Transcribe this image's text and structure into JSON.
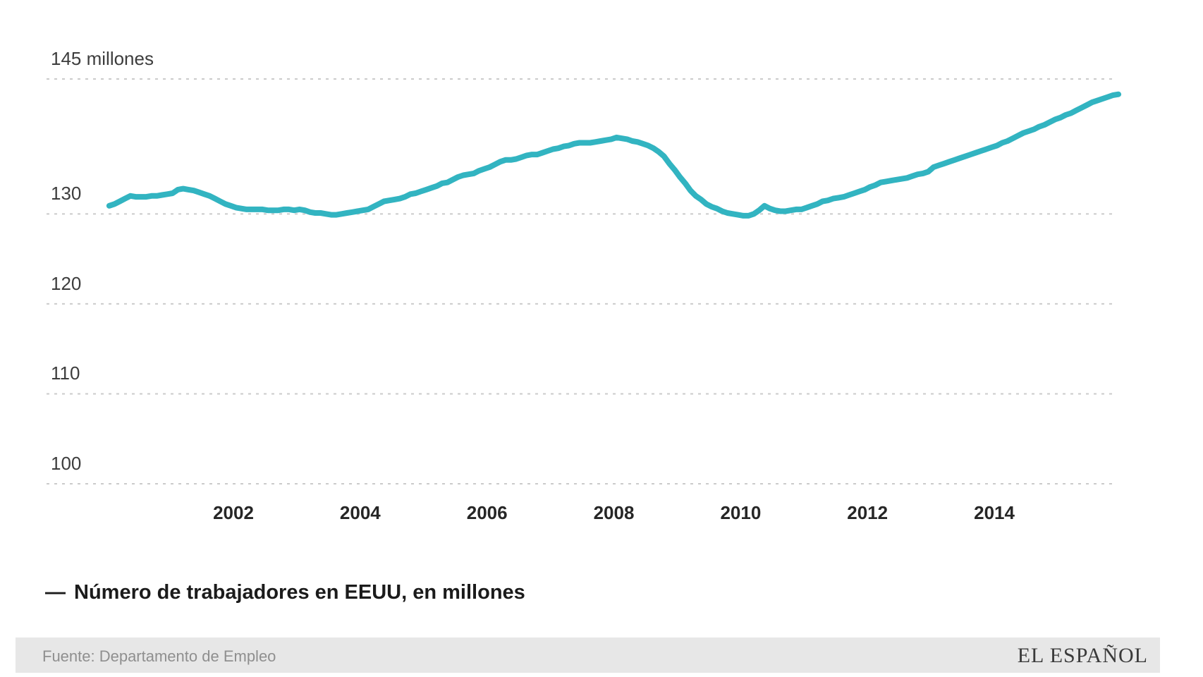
{
  "chart_data": {
    "type": "line",
    "title": "",
    "xlabel": "",
    "ylabel": "",
    "grid": "dashed-horizontal-only",
    "legend_position": "below-left",
    "xlim": [
      2000,
      2016.2
    ],
    "ylim": [
      97.5,
      146.5
    ],
    "x_ticks": [
      {
        "value": 2002,
        "label": "2002"
      },
      {
        "value": 2004,
        "label": "2004"
      },
      {
        "value": 2006,
        "label": "2006"
      },
      {
        "value": 2008,
        "label": "2008"
      },
      {
        "value": 2010,
        "label": "2010"
      },
      {
        "value": 2012,
        "label": "2012"
      },
      {
        "value": 2014,
        "label": "2014"
      }
    ],
    "y_ticks": [
      {
        "value": 145,
        "label": "145 millones"
      },
      {
        "value": 130,
        "label": "130"
      },
      {
        "value": 120,
        "label": "120"
      },
      {
        "value": 110,
        "label": "110"
      },
      {
        "value": 100,
        "label": "100"
      }
    ],
    "series": [
      {
        "name": "Número de trabajadores en EEUU, en millones",
        "color": "#32b4c1",
        "unit": "millones de trabajadores",
        "x_start_year": 2000,
        "x_step": "monthly",
        "values": [
          130.9,
          131.1,
          131.4,
          131.7,
          132.0,
          131.9,
          131.9,
          131.9,
          132.0,
          132.0,
          132.1,
          132.2,
          132.3,
          132.7,
          132.8,
          132.7,
          132.6,
          132.4,
          132.2,
          132.0,
          131.7,
          131.4,
          131.1,
          130.9,
          130.7,
          130.6,
          130.5,
          130.5,
          130.5,
          130.5,
          130.4,
          130.4,
          130.4,
          130.5,
          130.5,
          130.4,
          130.5,
          130.4,
          130.2,
          130.1,
          130.1,
          130.0,
          129.9,
          129.9,
          130.0,
          130.1,
          130.2,
          130.3,
          130.4,
          130.5,
          130.8,
          131.1,
          131.4,
          131.5,
          131.6,
          131.7,
          131.9,
          132.2,
          132.3,
          132.5,
          132.7,
          132.9,
          133.1,
          133.4,
          133.5,
          133.8,
          134.1,
          134.3,
          134.4,
          134.5,
          134.8,
          135.0,
          135.2,
          135.5,
          135.8,
          136.0,
          136.0,
          136.1,
          136.3,
          136.5,
          136.6,
          136.6,
          136.8,
          137.0,
          137.2,
          137.3,
          137.5,
          137.6,
          137.8,
          137.9,
          137.9,
          137.9,
          138.0,
          138.1,
          138.2,
          138.3,
          138.5,
          138.4,
          138.3,
          138.1,
          138.0,
          137.8,
          137.6,
          137.3,
          136.9,
          136.4,
          135.6,
          134.9,
          134.1,
          133.4,
          132.6,
          132.0,
          131.6,
          131.1,
          130.8,
          130.6,
          130.3,
          130.1,
          130.0,
          129.9,
          129.8,
          129.8,
          130.0,
          130.4,
          130.9,
          130.6,
          130.4,
          130.3,
          130.3,
          130.4,
          130.5,
          130.5,
          130.7,
          130.9,
          131.1,
          131.4,
          131.5,
          131.7,
          131.8,
          131.9,
          132.1,
          132.3,
          132.5,
          132.7,
          133.0,
          133.2,
          133.5,
          133.6,
          133.7,
          133.8,
          133.9,
          134.0,
          134.2,
          134.4,
          134.5,
          134.7,
          135.2,
          135.4,
          135.6,
          135.8,
          136.0,
          136.2,
          136.4,
          136.6,
          136.8,
          137.0,
          137.2,
          137.4,
          137.6,
          137.9,
          138.1,
          138.4,
          138.7,
          139.0,
          139.2,
          139.4,
          139.7,
          139.9,
          140.2,
          140.5,
          140.7,
          141.0,
          141.2,
          141.5,
          141.8,
          142.1,
          142.4,
          142.6,
          142.8,
          143.0,
          143.2,
          143.3
        ]
      }
    ]
  },
  "legend": {
    "marker": "—",
    "label": "Número de trabajadores en EEUU, en millones"
  },
  "footer": {
    "source": "Fuente: Departamento de Empleo",
    "brand": "EL ESPAÑOL"
  },
  "colors": {
    "line": "#32b4c1",
    "grid": "#cbcbcb",
    "y_tick_text": "#3d3d3d",
    "x_tick_text": "#262626",
    "legend_text": "#1b1b1b",
    "footer_bg": "#e7e7e7",
    "footer_text": "#8f8f8f",
    "brand_text": "#3a3a3a",
    "background": "#ffffff"
  }
}
